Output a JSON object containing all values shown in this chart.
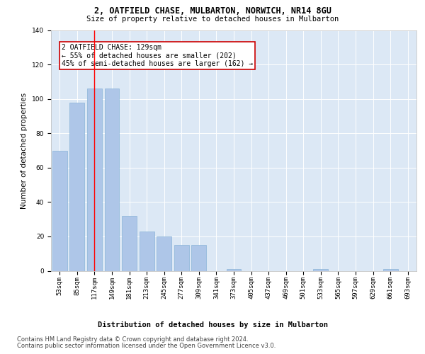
{
  "title": "2, OATFIELD CHASE, MULBARTON, NORWICH, NR14 8GU",
  "subtitle": "Size of property relative to detached houses in Mulbarton",
  "xlabel_bottom": "Distribution of detached houses by size in Mulbarton",
  "ylabel": "Number of detached properties",
  "categories": [
    "53sqm",
    "85sqm",
    "117sqm",
    "149sqm",
    "181sqm",
    "213sqm",
    "245sqm",
    "277sqm",
    "309sqm",
    "341sqm",
    "373sqm",
    "405sqm",
    "437sqm",
    "469sqm",
    "501sqm",
    "533sqm",
    "565sqm",
    "597sqm",
    "629sqm",
    "661sqm",
    "693sqm"
  ],
  "values": [
    70,
    98,
    106,
    106,
    32,
    23,
    20,
    15,
    15,
    0,
    1,
    0,
    0,
    0,
    0,
    1,
    0,
    0,
    0,
    1,
    0
  ],
  "bar_color": "#aec6e8",
  "bar_edge_color": "#8ab4d8",
  "redline_index": 2,
  "annotation_text": "2 OATFIELD CHASE: 129sqm\n← 55% of detached houses are smaller (202)\n45% of semi-detached houses are larger (162) →",
  "annotation_box_color": "#ffffff",
  "annotation_box_edge_color": "#cc0000",
  "ylim": [
    0,
    140
  ],
  "yticks": [
    0,
    20,
    40,
    60,
    80,
    100,
    120,
    140
  ],
  "background_color": "#dce8f5",
  "footer_line1": "Contains HM Land Registry data © Crown copyright and database right 2024.",
  "footer_line2": "Contains public sector information licensed under the Open Government Licence v3.0.",
  "title_fontsize": 8.5,
  "subtitle_fontsize": 7.5,
  "ylabel_fontsize": 7.5,
  "tick_fontsize": 6.5,
  "annotation_fontsize": 7,
  "xlabel_bottom_fontsize": 7.5,
  "footer_fontsize": 6
}
